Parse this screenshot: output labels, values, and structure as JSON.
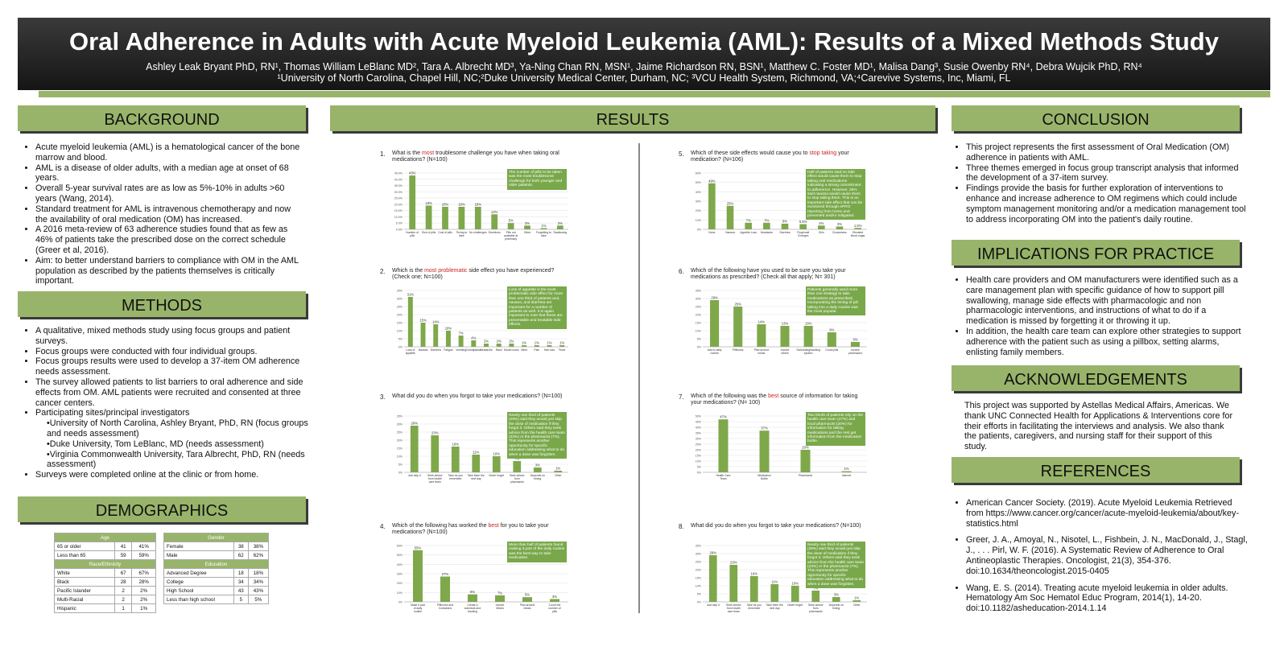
{
  "title": "Oral Adherence in Adults with Acute Myeloid Leukemia (AML): Results of a Mixed Methods Study",
  "authors": "Ashley Leak Bryant  PhD, RN¹, Thomas William LeBlanc MD², Tara A. Albrecht MD³, Ya-Ning Chan RN, MSN¹, Jaime Richardson RN, BSN¹, Matthew C. Foster MD¹, Malisa Dang³, Susie Owenby RN⁴, Debra Wujcik PhD, RN⁴",
  "affiliations": "¹University of North Carolina, Chapel Hill, NC;²Duke University Medical Center, Durham, NC; ³VCU Health System, Richmond, VA;⁴Carevive Systems, Inc, Miami, FL",
  "sections": {
    "background": "BACKGROUND",
    "methods": "METHODS",
    "demographics": "DEMOGRAPHICS",
    "results": "RESULTS",
    "conclusion": "CONCLUSION",
    "implications": "IMPLICATIONS FOR PRACTICE",
    "acknowledgements": "ACKNOWLEDGEMENTS",
    "references": "REFERENCES"
  },
  "background": [
    "Acute myeloid leukemia (AML) is a hematological cancer of the bone marrow and blood.",
    "AML is a disease of older adults, with a median age at onset of 68 years.",
    "Overall 5-year survival rates are as low as 5%-10% in adults >60 years (Wang, 2014).",
    "Standard treatment for AML is intravenous chemotherapy and now the availability of oral medication (OM) has increased.",
    "A 2016 meta-review of 63 adherence studies found that as few as 46% of patients take the prescribed dose on the correct schedule (Greer et al, 2016).",
    "Aim: to better understand barriers to compliance with OM in the AML population as described by the patients themselves is critically important."
  ],
  "methods": {
    "items": [
      "A qualitative, mixed methods study using focus groups and patient surveys.",
      "Focus groups were conducted with four individual groups.",
      "Focus groups results were used to develop a 37-item OM adherence needs assessment.",
      "The survey allowed patients to list barriers to oral adherence and side effects from OM. AML patients were recruited and consented at three cancer centers.",
      "Participating sites/principal investigators"
    ],
    "sites": [
      "University of North Carolina, Ashley Bryant, PhD, RN (focus groups and needs assessment)",
      "Duke University, Tom LeBlanc, MD (needs assessment)",
      "Virginia Commonwealth University, Tara Albrecht, PhD, RN (needs assessment)"
    ],
    "last": "Surveys were completed online at the clinic or from home."
  },
  "demographics": {
    "left": {
      "age_header": "Age",
      "age_rows": [
        [
          "65 or older",
          "41",
          "41%"
        ],
        [
          "Less than 65",
          "59",
          "59%"
        ]
      ],
      "race_header": "Race/Ethnicity",
      "race_rows": [
        [
          "White",
          "67",
          "67%"
        ],
        [
          "Black",
          "28",
          "28%"
        ],
        [
          "Pacific Islander",
          "2",
          "2%"
        ],
        [
          "Multi-Racial",
          "2",
          "2%"
        ],
        [
          "Hispanic",
          "1",
          "1%"
        ]
      ]
    },
    "right": {
      "gender_header": "Gender",
      "gender_rows": [
        [
          "Female",
          "38",
          "38%"
        ],
        [
          "Male",
          "62",
          "62%"
        ]
      ],
      "edu_header": "Education",
      "edu_rows": [
        [
          "Advanced Degree",
          "18",
          "18%"
        ],
        [
          "College",
          "34",
          "34%"
        ],
        [
          "High School",
          "43",
          "43%"
        ],
        [
          "Less than high school",
          "5",
          "5%"
        ]
      ]
    }
  },
  "conclusion": [
    "This project represents the first assessment of Oral Medication (OM) adherence in patients with AML.",
    "Three themes emerged in focus group transcript analysis that informed the development of a 37-item survey.",
    "Findings provide the basis for further exploration of interventions to enhance and increase adherence to OM regimens which could include symptom management monitoring and/or a medication management tool to address incorporating OM into the patient's daily routine."
  ],
  "implications": [
    "Health care providers and OM manufacturers were identified such as a care management plan with specific guidance of how to support pill swallowing, manage side effects with pharmacologic and non pharmacologic interventions, and instructions of what to do if a medication is missed by forgetting it or throwing it up.",
    "In addition, the health care team can explore other strategies to support adherence with the patient such as using a pillbox, setting alarms, enlisting family members."
  ],
  "acknowledgements": "This project was supported by Astellas Medical Affairs, Americas. We thank UNC Connected Health for Applications & Interventions core for their efforts in facilitating the interviews and analysis. We also thank the patients, caregivers, and nursing staff for their support of this study.",
  "references": [
    "American Cancer Society. (2019). Acute Myeloid Leukemia Retrieved from https://www.cancer.org/cancer/acute-myeloid-leukemia/about/key-statistics.html",
    "Greer, J. A., Amoyal, N., Nisotel, L., Fishbein, J. N., MacDonald, J., Stagl, J., . . . Pirl, W. F. (2016). A Systematic Review of Adherence to Oral Antineoplastic Therapies. Oncologist, 21(3), 354-376. doi:10.1634/theoncologist.2015-0405",
    "Wang, E. S. (2014). Treating acute myeloid leukemia in older adults. Hematology Am Soc Hematol Educ Program, 2014(1), 14-20. doi:10.1182/asheducation-2014.1.14"
  ],
  "colors": {
    "accent": "#98b46a",
    "bar": "#7ea84a",
    "highlight": "#cc2222",
    "banner": "#222222"
  },
  "chart_data": [
    {
      "type": "bar",
      "num": "1.",
      "q_pre": "What is the ",
      "q_hl": "most",
      "q_post": " troublesome challenge you have when taking oral medications? (N=100)",
      "categories": [
        "Number of pills",
        "Size of pills",
        "Cost of pills",
        "Timing to take",
        "No challenges",
        "Directions",
        "Pills not available at pharmacy",
        "Other",
        "Forgetting to take",
        "Swallowing"
      ],
      "values": [
        43,
        19,
        18,
        18,
        18,
        12,
        5,
        3,
        1,
        3
      ],
      "ylim": [
        0,
        45
      ],
      "yticks": [
        "0.0%",
        "5.0%",
        "10.0%",
        "15.0%",
        "20.0%",
        "25.0%",
        "30.0%",
        "35.0%",
        "40.0%",
        "45.0%"
      ],
      "note": "The number of pills to be taken was the most troublesome challenge for both younger and older patients."
    },
    {
      "type": "bar",
      "num": "2.",
      "q_pre": "Which is the ",
      "q_hl": "most problematic",
      "q_post": " side effect you have experienced? (Check one; N=100)",
      "categories": [
        "Loss of appetite",
        "Nausea",
        "Diarrhea",
        "Fatigue",
        "Vomiting",
        "Constipation",
        "Headache",
        "Rash",
        "Mouth sores",
        "Other",
        "Pain",
        "Hair loss",
        "Fever"
      ],
      "values": [
        31,
        15,
        14,
        10,
        7,
        4,
        2,
        2,
        2,
        1,
        1,
        1,
        1
      ],
      "ylim": [
        0,
        35
      ],
      "yticks": [
        "0%",
        "5%",
        "10%",
        "15%",
        "20%",
        "25%",
        "30%",
        "35%"
      ],
      "note": "Loss of appetite is the most problematic side effect for more than one third of patients and, nausea, and diarrhea are important for a number of patients as well. It is again important to note that these are preventable and treatable side effects."
    },
    {
      "type": "bar",
      "num": "3.",
      "q_pre": "What did you do when you forgot to take your medications? (N=100)",
      "q_hl": "",
      "q_post": "",
      "categories": [
        "Just skip it",
        "Seek advice from health care team",
        "Take as you remember",
        "Take them the next day",
        "Never forget",
        "Seek advice from pharmacist",
        "Depends on timing",
        "Other"
      ],
      "values": [
        29,
        23,
        16,
        11,
        10,
        7,
        3,
        1
      ],
      "ylim": [
        0,
        35
      ],
      "yticks": [
        "0%",
        "5%",
        "10%",
        "15%",
        "20%",
        "25%",
        "30%",
        "35%"
      ],
      "note": "Nearly one third of patients (29%) said they would just skip the dose of medication if they forgot it. Others said they seek advice from the health care team (23%) or the pharmacist (7%). This represents another opportunity for specific education addressing what to do when a dose was forgotten."
    },
    {
      "type": "bar",
      "num": "4.",
      "q_pre": "Which of the following has worked the ",
      "q_hl": "best",
      "q_post": " for you to take your medications? (N=100)",
      "categories": [
        "Make it part of daily routine",
        "Pillboxes and Containers",
        "Create a schedule and tracking system",
        "Involve Others",
        "Plan around meals",
        "Count the number of pills"
      ],
      "values": [
        55,
        27,
        8,
        7,
        5,
        3
      ],
      "ylim": [
        0,
        60
      ],
      "yticks": [
        "0%",
        "10%",
        "20%",
        "30%",
        "40%",
        "50%",
        "60%"
      ],
      "note": "More than half of patients found making it part of the daily routine was the best way to take medication."
    },
    {
      "type": "bar",
      "num": "5.",
      "q_pre": "Which of these side effects would cause you to ",
      "q_hl": "stop taking",
      "q_post": " your medication? (N=106)",
      "categories": [
        "None",
        "Nausea",
        "Appetite Loss",
        "Headache",
        "Diarrhea",
        "Fingernail Changes",
        "Skin",
        "Drowsiness",
        "Elevated blood sugar"
      ],
      "values": [
        49,
        25,
        7,
        7,
        6,
        5.5,
        4,
        3,
        1.5
      ],
      "labels": [
        "49%",
        "25%",
        "7%",
        "7%",
        "6%",
        "5.5%",
        "4%",
        "3%",
        "1.5%"
      ],
      "ylim": [
        0,
        60
      ],
      "yticks": [
        "0%",
        "10%",
        "20%",
        "30%",
        "40%",
        "50%",
        "60%"
      ],
      "note": "Half of patients said no side effect would cause them to stop taking oral medications indicating a strong commitment to adherence. However, 25% said nausea would cause them to stop taking them. This is an important side effect that can be monitored through ePRO reporting from home and prevented and/or mitigated."
    },
    {
      "type": "bar",
      "num": "6.",
      "q_pre": "Which of the following have you used to be sure you take your medications as prescribed? (Check all that apply; N= 301)",
      "q_hl": "",
      "q_post": "",
      "categories": [
        "Add to daily routine",
        "Pillboxes",
        "Plan around meals",
        "Involve others",
        "Scheduling/tracking system",
        "Count pills",
        "Involve pharmacist"
      ],
      "values": [
        29,
        25,
        14,
        13,
        13,
        9,
        3
      ],
      "ylim": [
        0,
        35
      ],
      "yticks": [
        "0%",
        "5%",
        "10%",
        "15%",
        "20%",
        "25%",
        "30%",
        "35%"
      ],
      "note": "Patients generally used more than one strategy to take medications as prescribed. Incorporating the timing of pill taking into a daily routine was the most popular."
    },
    {
      "type": "bar",
      "num": "7.",
      "q_pre": "Which of the following was the ",
      "q_hl": "best",
      "q_post": " source of information for taking your medications? (N= 100)",
      "categories": [
        "Health Care Team",
        "Medication Bottle",
        "Pharmacist",
        "Internet"
      ],
      "values": [
        47,
        37,
        20,
        1
      ],
      "ylim": [
        0,
        50
      ],
      "yticks": [
        "0%",
        "5%",
        "10%",
        "15%",
        "20%",
        "25%",
        "30%",
        "35%",
        "40%",
        "45%",
        "50%"
      ],
      "note": "Two thirds of patients rely on the health care team (47%) and local pharmacist (20%) for information for taking medications and the rest get information from the medication bottle."
    },
    {
      "type": "bar",
      "num": "8.",
      "q_pre": "What did you do when you forgot to take your medications? (N=100)",
      "q_hl": "",
      "q_post": "",
      "categories": [
        "Just skip it",
        "Seek advice from health care team",
        "Take as you remember",
        "Take them the next day",
        "Never forget",
        "Seek advice from pharmacist",
        "Depends on timing",
        "Other"
      ],
      "values": [
        29,
        23,
        16,
        11,
        10,
        7,
        3,
        1
      ],
      "ylim": [
        0,
        35
      ],
      "yticks": [
        "0%",
        "5%",
        "10%",
        "15%",
        "20%",
        "25%",
        "30%",
        "35%"
      ],
      "note": "Nearly one third of patients (29%) said they would just skip the dose of medication if they forgot it. Others said they seek advice from the health care team (23%) or the pharmacist (7%). This represents another opportunity for specific education addressing what to do when a dose was forgotten."
    }
  ]
}
